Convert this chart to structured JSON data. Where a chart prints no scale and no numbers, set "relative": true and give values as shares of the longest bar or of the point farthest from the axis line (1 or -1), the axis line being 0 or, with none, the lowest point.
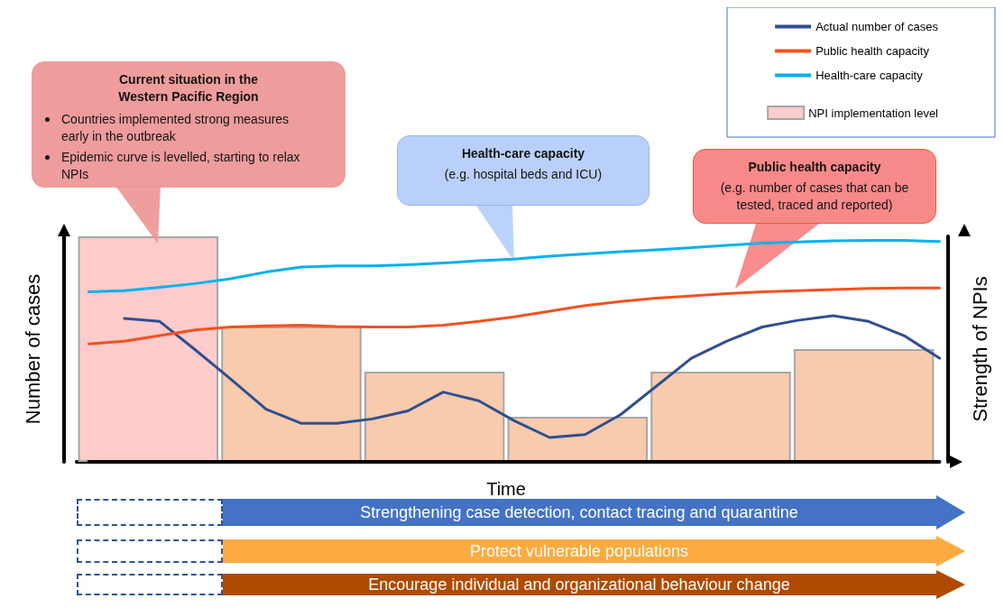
{
  "chart_data": [
    {
      "type": "bar",
      "relative": true,
      "xlabel": "Time",
      "ylabel": "Number of cases",
      "y2label": "Strength of NPIs",
      "categories": [
        null,
        null,
        null,
        null,
        null,
        null
      ],
      "legend": "top right",
      "series": [
        {
          "name": "NPI implementation level",
          "colors": [
            "#ffcccc",
            "#f8cbad",
            "#f8cbad",
            "#f8cbad",
            "#f8cbad",
            "#f8cbad"
          ],
          "values": [
            1,
            0.6,
            0.4,
            0.2,
            0.4,
            0.5
          ]
        }
      ],
      "annotations": [
        "Current situation in the Western Pacific Region",
        "Countries implemented strong measures early in the outbreak",
        "Epidemic curve is levelled, starting to relax NPIs",
        "Health-care capacity",
        "(e.g. hospital beds and ICU)",
        "Public health capacity",
        "(e.g. number of cases that can be tested, traced and reported)",
        "Strengthening case detection, contact tracing and quarantine",
        "Protect vulnerable populations",
        "Encourage individual and organizational behaviour change"
      ]
    },
    {
      "type": "line",
      "relative": true,
      "legend": "top right",
      "categories": [
        null,
        null,
        null,
        null,
        null,
        null,
        null,
        null,
        null,
        null,
        null,
        null,
        null,
        null,
        null,
        null,
        null,
        null,
        null,
        null,
        null,
        null,
        null,
        null,
        null
      ],
      "series": [
        {
          "name": "Actual number of cases",
          "color": "#2f4f8f",
          "values": [
            null,
            0.648,
            0.634,
            0.506,
            0.374,
            0.238,
            0.174,
            0.174,
            0.194,
            0.23,
            0.315,
            0.276,
            0.186,
            0.11,
            0.123,
            0.213,
            0.34,
            0.468,
            0.545,
            0.609,
            0.639,
            0.66,
            0.634,
            0.57,
            0.468
          ]
        },
        {
          "name": "Public health capacity",
          "color": "#f4511e",
          "values": [
            0.533,
            0.545,
            0.57,
            0.596,
            0.609,
            0.614,
            0.617,
            0.611,
            0.609,
            0.609,
            0.617,
            0.634,
            0.655,
            0.68,
            0.706,
            0.724,
            0.739,
            0.749,
            0.76,
            0.768,
            0.773,
            0.778,
            0.783,
            0.785,
            0.785
          ]
        },
        {
          "name": "Health-care capacity",
          "color": "#00b0f0",
          "values": [
            0.768,
            0.773,
            0.788,
            0.805,
            0.827,
            0.857,
            0.88,
            0.885,
            0.885,
            0.89,
            0.898,
            0.908,
            0.915,
            0.929,
            0.939,
            0.949,
            0.957,
            0.967,
            0.978,
            0.988,
            0.993,
            0.998,
            1,
            1,
            0.995
          ]
        }
      ]
    }
  ]
}
